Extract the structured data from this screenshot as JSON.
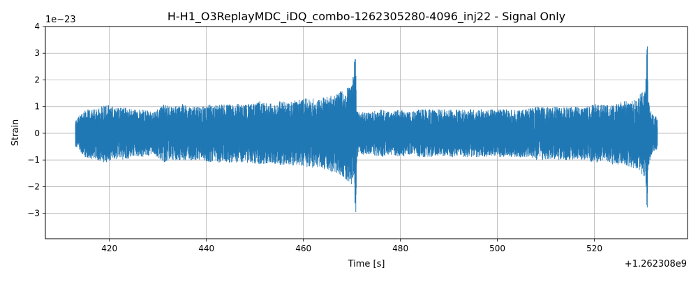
{
  "chart_data": {
    "type": "line",
    "title": "H-H1_O3ReplayMDC_iDQ_combo-1262305280-4096_inj22 - Signal Only",
    "xlabel": "Time [s]",
    "ylabel": "Strain",
    "x_offset_label": "+1.262308e9",
    "y_scale_label": "1e−23",
    "xlim": [
      406.8,
      539.2
    ],
    "ylim": [
      -3.95,
      4.0
    ],
    "x_ticks": [
      420,
      440,
      460,
      480,
      500,
      520
    ],
    "x_tick_labels": [
      "420",
      "440",
      "460",
      "480",
      "500",
      "520"
    ],
    "y_ticks": [
      -3,
      -2,
      -1,
      0,
      1,
      2,
      3,
      4
    ],
    "y_tick_labels": [
      "−3",
      "−2",
      "−1",
      "0",
      "1",
      "2",
      "3",
      "4"
    ],
    "grid": true,
    "line_color": "#1f77b4",
    "series": [
      {
        "envelope_x": [
          413.0,
          415.0,
          417.0,
          419.0,
          421.0,
          423.0,
          425.0,
          427.0,
          429.0,
          431.0,
          433.0,
          435.0,
          437.0,
          439.0,
          441.0,
          443.0,
          445.0,
          447.0,
          449.0,
          451.0,
          453.0,
          455.0,
          457.0,
          459.0,
          461.0,
          463.0,
          465.0,
          466.5,
          468.0,
          469.5,
          470.3,
          470.8,
          471.0,
          471.3,
          472.0,
          474.0,
          476.0,
          478.0,
          480.0,
          482.0,
          484.0,
          486.0,
          488.0,
          490.0,
          492.0,
          494.0,
          496.0,
          498.0,
          500.0,
          502.0,
          504.0,
          506.0,
          508.0,
          510.0,
          512.0,
          514.0,
          516.0,
          518.0,
          520.0,
          522.0,
          524.0,
          526.0,
          528.0,
          529.5,
          530.5,
          530.9,
          531.1,
          532.0,
          533.0
        ],
        "envelope_upper": [
          0.5,
          0.9,
          0.9,
          1.1,
          1.0,
          1.0,
          0.9,
          0.9,
          0.8,
          1.1,
          1.0,
          1.1,
          1.0,
          1.0,
          1.1,
          1.1,
          1.1,
          1.1,
          1.1,
          1.2,
          1.1,
          1.2,
          1.2,
          1.3,
          1.3,
          1.3,
          1.4,
          1.5,
          1.6,
          1.8,
          2.2,
          3.35,
          1.1,
          0.8,
          0.8,
          0.8,
          0.9,
          0.8,
          0.9,
          0.8,
          0.9,
          0.9,
          0.9,
          0.9,
          0.9,
          0.9,
          0.9,
          0.9,
          0.9,
          0.9,
          0.9,
          0.9,
          1.0,
          1.0,
          1.0,
          1.0,
          1.0,
          1.0,
          1.1,
          1.1,
          1.1,
          1.2,
          1.3,
          1.5,
          1.6,
          3.65,
          1.3,
          0.7,
          0.6
        ],
        "envelope_lower": [
          -0.5,
          -0.9,
          -1.0,
          -1.1,
          -1.0,
          -1.0,
          -0.9,
          -0.9,
          -0.8,
          -1.1,
          -1.0,
          -1.1,
          -1.0,
          -1.0,
          -1.1,
          -1.1,
          -1.1,
          -1.1,
          -1.1,
          -1.2,
          -1.1,
          -1.2,
          -1.2,
          -1.2,
          -1.3,
          -1.3,
          -1.4,
          -1.5,
          -1.6,
          -1.9,
          -2.0,
          -3.55,
          -1.0,
          -0.8,
          -0.8,
          -0.8,
          -0.9,
          -0.8,
          -0.9,
          -0.8,
          -0.9,
          -0.9,
          -0.9,
          -0.9,
          -0.9,
          -0.9,
          -0.9,
          -0.9,
          -0.9,
          -0.9,
          -0.9,
          -0.9,
          -1.0,
          -1.0,
          -1.0,
          -1.0,
          -1.0,
          -1.0,
          -1.1,
          -1.1,
          -1.2,
          -1.2,
          -1.3,
          -1.5,
          -1.7,
          -3.35,
          -1.3,
          -0.7,
          -0.6
        ]
      }
    ]
  }
}
